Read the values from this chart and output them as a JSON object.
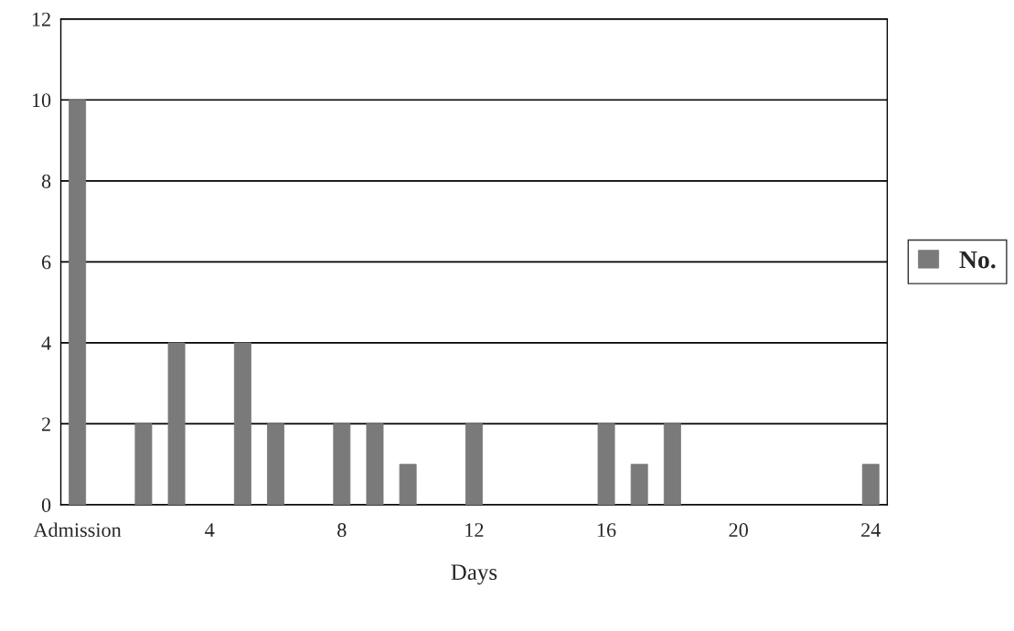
{
  "chart_data": {
    "type": "bar",
    "xlabel": "Days",
    "categories": [
      "Admission",
      null,
      null,
      null,
      "4",
      null,
      null,
      null,
      "8",
      null,
      null,
      null,
      "12",
      null,
      null,
      null,
      "16",
      null,
      null,
      null,
      "20",
      null,
      null,
      null,
      "24"
    ],
    "series": [
      {
        "name": "No.",
        "color": "#7a7a7a",
        "values": [
          10,
          null,
          2,
          4,
          null,
          4,
          2,
          null,
          2,
          2,
          1,
          null,
          2,
          null,
          null,
          null,
          2,
          1,
          2,
          null,
          null,
          null,
          null,
          null,
          1
        ]
      }
    ],
    "ylim": [
      0,
      12
    ],
    "yticks": [
      0,
      2,
      4,
      6,
      8,
      10,
      12
    ],
    "grid": "y",
    "legend": "right"
  }
}
